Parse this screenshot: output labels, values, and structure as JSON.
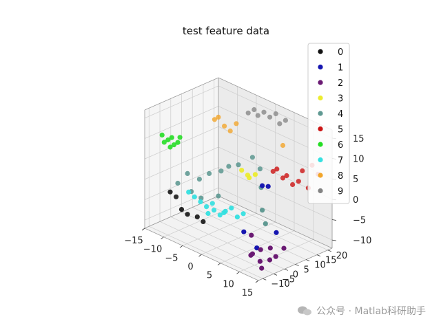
{
  "chart_data": {
    "type": "scatter",
    "title": "test feature data",
    "xlabel": "",
    "ylabel": "",
    "zlabel": "",
    "xlim": [
      -15,
      15
    ],
    "ylim": [
      -12,
      22
    ],
    "zlim": [
      -12,
      17
    ],
    "xticks": [
      -15,
      -10,
      -5,
      0,
      5,
      10,
      15
    ],
    "yticks": [
      -10,
      -5,
      0,
      5,
      10,
      15,
      20
    ],
    "zticks": [
      -10,
      -5,
      0,
      5,
      10,
      15
    ],
    "legend_placement": "top-right",
    "grid": true,
    "series": [
      {
        "name": "0",
        "color": "#111111",
        "points": [
          [
            -14,
            -2,
            -5
          ],
          [
            -13,
            -1,
            -6
          ],
          [
            -11,
            -2,
            -8
          ],
          [
            -10,
            -1,
            -9
          ],
          [
            -8,
            0,
            -9
          ],
          [
            -7,
            1,
            -10
          ]
        ]
      },
      {
        "name": "1",
        "color": "#1515b0",
        "points": [
          [
            8,
            2,
            5
          ],
          [
            9,
            3,
            5
          ],
          [
            14,
            -2,
            -3
          ],
          [
            10,
            -4,
            -8
          ],
          [
            6,
            -3,
            -6
          ]
        ]
      },
      {
        "name": "2",
        "color": "#6a1a73",
        "points": [
          [
            9,
            -5,
            -10
          ],
          [
            10,
            -6,
            -9
          ],
          [
            11,
            -4,
            -8
          ],
          [
            13,
            -3,
            -7
          ],
          [
            14,
            -5,
            -9
          ],
          [
            15,
            -4,
            -8
          ],
          [
            12,
            -6,
            -10
          ],
          [
            16,
            -2,
            -6
          ],
          [
            8,
            -3,
            -6
          ],
          [
            13,
            -7,
            -11
          ]
        ]
      },
      {
        "name": "3",
        "color": "#ecec2e",
        "points": [
          [
            2,
            3,
            6
          ],
          [
            3,
            4,
            5
          ],
          [
            4,
            3,
            5
          ],
          [
            5,
            4,
            6
          ]
        ]
      },
      {
        "name": "4",
        "color": "#5f9992",
        "points": [
          [
            -12,
            -2,
            -2
          ],
          [
            -10,
            -1,
            1
          ],
          [
            -8,
            1,
            0
          ],
          [
            -6,
            2,
            2
          ],
          [
            -4,
            4,
            3
          ],
          [
            -2,
            4,
            5
          ],
          [
            0,
            5,
            6
          ],
          [
            2,
            8,
            8
          ],
          [
            -7,
            0,
            -4
          ],
          [
            -9,
            -1,
            -3
          ],
          [
            -3,
            1,
            -2
          ],
          [
            4,
            8,
            6
          ],
          [
            6,
            5,
            3
          ],
          [
            8,
            2,
            -1
          ],
          [
            10,
            0,
            -3
          ]
        ]
      },
      {
        "name": "5",
        "color": "#cc1414",
        "points": [
          [
            4,
            14,
            4
          ],
          [
            5,
            14,
            5
          ],
          [
            6,
            15,
            3
          ],
          [
            7,
            15,
            4
          ],
          [
            8,
            16,
            2
          ],
          [
            9,
            17,
            3
          ],
          [
            10,
            17,
            6
          ],
          [
            12,
            18,
            8
          ],
          [
            13,
            19,
            6
          ],
          [
            11,
            18,
            2
          ]
        ]
      },
      {
        "name": "6",
        "color": "#22dd22",
        "points": [
          [
            -15,
            -4,
            9
          ],
          [
            -15,
            -3,
            7
          ],
          [
            -14,
            -3,
            8
          ],
          [
            -14,
            -2,
            6
          ],
          [
            -13,
            -3,
            9
          ],
          [
            -13,
            -2,
            7
          ],
          [
            -12,
            -2,
            8
          ],
          [
            -12,
            -1,
            9
          ]
        ]
      },
      {
        "name": "7",
        "color": "#35e0e0",
        "points": [
          [
            -6,
            -2,
            -4
          ],
          [
            -5,
            -1,
            -5
          ],
          [
            -4,
            -2,
            -6
          ],
          [
            -3,
            -1,
            -5
          ],
          [
            -2,
            0,
            -6
          ],
          [
            -1,
            0,
            -5
          ],
          [
            0,
            -1,
            -4
          ],
          [
            1,
            0,
            -3
          ],
          [
            -7,
            -3,
            -3
          ],
          [
            -8,
            -4,
            -2
          ],
          [
            -4,
            0,
            -4
          ],
          [
            2,
            1,
            -5
          ],
          [
            3,
            2,
            -4
          ]
        ]
      },
      {
        "name": "8",
        "color": "#f2a52a",
        "points": [
          [
            -8,
            8,
            13
          ],
          [
            -7,
            8,
            14
          ],
          [
            -6,
            9,
            12
          ],
          [
            -5,
            10,
            11
          ],
          [
            -4,
            11,
            13
          ],
          [
            6,
            15,
            11
          ]
        ]
      },
      {
        "name": "9",
        "color": "#838383",
        "points": [
          [
            -2,
            13,
            16
          ],
          [
            -1,
            14,
            17
          ],
          [
            0,
            14,
            16
          ],
          [
            1,
            15,
            17
          ],
          [
            2,
            16,
            16
          ],
          [
            3,
            17,
            17
          ],
          [
            4,
            17,
            15
          ],
          [
            5,
            18,
            16
          ]
        ]
      }
    ]
  },
  "watermark": {
    "text": "公众号 · Matlab科研助手",
    "icon": "wechat-icon"
  }
}
